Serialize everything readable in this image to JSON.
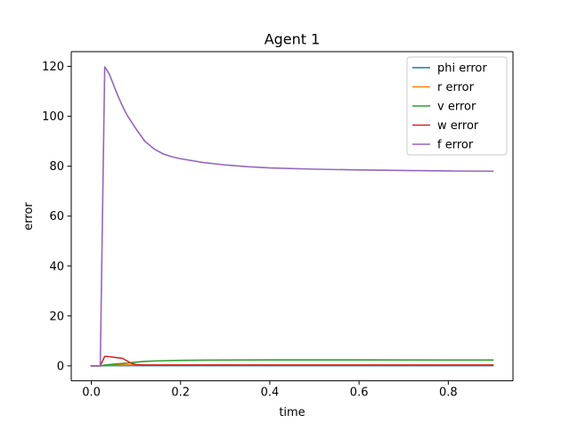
{
  "chart_data": {
    "type": "line",
    "title": "Agent 1",
    "xlabel": "time",
    "ylabel": "error",
    "xlim": [
      -0.045,
      0.945
    ],
    "ylim": [
      -5.97,
      125.9
    ],
    "xticks": [
      0.0,
      0.2,
      0.4,
      0.6,
      0.8
    ],
    "xtick_labels": [
      "0.0",
      "0.2",
      "0.4",
      "0.6",
      "0.8"
    ],
    "yticks": [
      0,
      20,
      40,
      60,
      80,
      100,
      120
    ],
    "ytick_labels": [
      "0",
      "20",
      "40",
      "60",
      "80",
      "100",
      "120"
    ],
    "grid": false,
    "legend_position": "top-right",
    "series": [
      {
        "name": "phi error",
        "color": "#1f77b4",
        "x": [
          0.0,
          0.02,
          0.03,
          0.05,
          0.1,
          0.2,
          0.4,
          0.6,
          0.8,
          0.9
        ],
        "y": [
          0.0,
          0.0,
          0.1,
          0.12,
          0.12,
          0.12,
          0.12,
          0.12,
          0.12,
          0.12
        ]
      },
      {
        "name": "r error",
        "color": "#ff7f0e",
        "x": [
          0.0,
          0.02,
          0.03,
          0.05,
          0.1,
          0.2,
          0.4,
          0.6,
          0.8,
          0.9
        ],
        "y": [
          0.0,
          0.0,
          0.3,
          0.4,
          0.4,
          0.4,
          0.4,
          0.4,
          0.4,
          0.4
        ]
      },
      {
        "name": "v error",
        "color": "#2ca02c",
        "x": [
          0.0,
          0.02,
          0.03,
          0.05,
          0.08,
          0.1,
          0.12,
          0.15,
          0.2,
          0.25,
          0.3,
          0.4,
          0.6,
          0.8,
          0.9
        ],
        "y": [
          0.0,
          0.0,
          0.3,
          0.7,
          1.1,
          1.5,
          1.8,
          2.0,
          2.2,
          2.3,
          2.35,
          2.4,
          2.4,
          2.35,
          2.35
        ]
      },
      {
        "name": "w error",
        "color": "#d62728",
        "x": [
          0.0,
          0.02,
          0.03,
          0.04,
          0.07,
          0.09,
          0.1,
          0.12,
          0.2,
          0.4,
          0.6,
          0.8,
          0.9
        ],
        "y": [
          0.0,
          0.0,
          3.8,
          3.7,
          3.0,
          1.0,
          0.5,
          0.4,
          0.35,
          0.3,
          0.3,
          0.3,
          0.3
        ]
      },
      {
        "name": "f error",
        "color": "#9467bd",
        "x": [
          0.0,
          0.02,
          0.03,
          0.04,
          0.05,
          0.06,
          0.07,
          0.08,
          0.1,
          0.12,
          0.14,
          0.16,
          0.18,
          0.2,
          0.25,
          0.3,
          0.35,
          0.4,
          0.5,
          0.6,
          0.7,
          0.8,
          0.9
        ],
        "y": [
          0.0,
          0.0,
          119.8,
          117.0,
          112.5,
          108.0,
          104.0,
          100.5,
          95.0,
          90.0,
          87.0,
          85.0,
          83.8,
          83.0,
          81.5,
          80.5,
          79.8,
          79.3,
          78.8,
          78.5,
          78.3,
          78.1,
          78.0
        ]
      }
    ]
  }
}
